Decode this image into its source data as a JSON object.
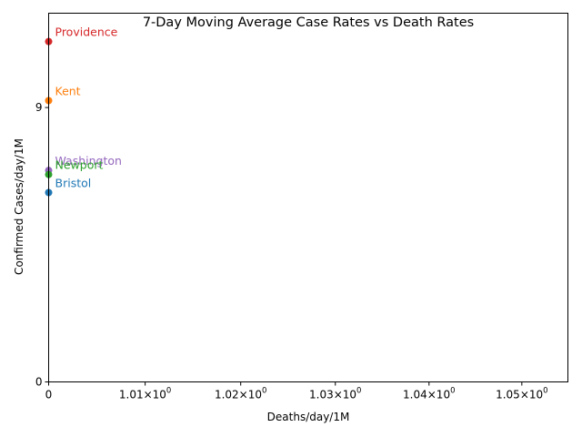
{
  "chart_data": {
    "type": "scatter",
    "title": "7-Day Moving Average Case Rates vs Death Rates",
    "xlabel": "Deaths/day/1M",
    "ylabel": "Confirmed Cases/day/1M",
    "x_scale": "log",
    "y_scale": "log",
    "xlim": [
      1.0,
      1.055
    ],
    "ylim": [
      0.0,
      16.5
    ],
    "x_ticks": [
      {
        "value": 1.0,
        "label": "0"
      },
      {
        "value": 1.01,
        "base": "1.01",
        "exp": "0",
        "label": "1.01×10^0"
      },
      {
        "value": 1.02,
        "base": "1.02",
        "exp": "0",
        "label": "1.02×10^0"
      },
      {
        "value": 1.03,
        "base": "1.03",
        "exp": "0",
        "label": "1.03×10^0"
      },
      {
        "value": 1.04,
        "base": "1.04",
        "exp": "0",
        "label": "1.04×10^0"
      },
      {
        "value": 1.05,
        "base": "1.05",
        "exp": "0",
        "label": "1.05×10^0"
      }
    ],
    "y_ticks": [
      {
        "value": 0,
        "label": "0"
      },
      {
        "value": 9,
        "label": "9"
      }
    ],
    "grid": false,
    "points": [
      {
        "name": "Providence",
        "x": 1.0,
        "y": 16.4,
        "color": "#d62728"
      },
      {
        "name": "Kent",
        "x": 1.0,
        "y": 9.6,
        "color": "#ff7f0e"
      },
      {
        "name": "Washington",
        "x": 1.0,
        "y": 4.9,
        "color": "#9467bd"
      },
      {
        "name": "Newport",
        "x": 1.0,
        "y": 4.7,
        "color": "#2ca02c"
      },
      {
        "name": "Bristol",
        "x": 1.0,
        "y": 3.9,
        "color": "#1f77b4"
      }
    ]
  }
}
